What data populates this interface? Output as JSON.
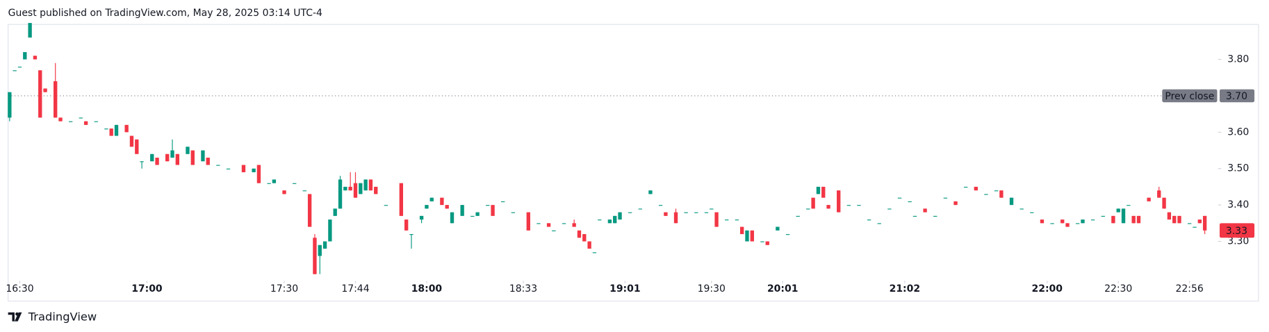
{
  "header": "Guest published on TradingView.com, May 28, 2025 03:14 UTC-4",
  "footer": "TradingView",
  "chart_data": {
    "type": "candlestick",
    "up_color": "#089981",
    "down_color": "#f23645",
    "xlim": [
      -0.3,
      237.6
    ],
    "ylim": [
      3.196,
      3.896
    ],
    "yticks": [
      {
        "value": 3.3,
        "label": "3.30"
      },
      {
        "value": 3.4,
        "label": "3.40"
      },
      {
        "value": 3.5,
        "label": "3.50"
      },
      {
        "value": 3.6,
        "label": "3.60"
      },
      {
        "value": 3.8,
        "label": "3.80"
      }
    ],
    "xticks": [
      {
        "value": 2,
        "label": "16:30"
      },
      {
        "value": 27,
        "label": "17:00",
        "bold": true
      },
      {
        "value": 54,
        "label": "17:30"
      },
      {
        "value": 68,
        "label": "17:44"
      },
      {
        "value": 82,
        "label": "18:00",
        "bold": true
      },
      {
        "value": 101,
        "label": "18:33"
      },
      {
        "value": 121,
        "label": "19:01",
        "bold": true
      },
      {
        "value": 138,
        "label": "19:30"
      },
      {
        "value": 152,
        "label": "20:01",
        "bold": true
      },
      {
        "value": 176,
        "label": "21:02",
        "bold": true
      },
      {
        "value": 204,
        "label": "22:00",
        "bold": true
      },
      {
        "value": 218,
        "label": "22:30"
      },
      {
        "value": 232,
        "label": "22:56"
      }
    ],
    "prev_close": {
      "name": "Prev close",
      "value": 3.7,
      "label": "3.70",
      "color": "#787b86"
    },
    "last_price": 3.33,
    "x": [
      0,
      1,
      2,
      3,
      4,
      5,
      6,
      7,
      9,
      10,
      12,
      14,
      15,
      17,
      19,
      20,
      21,
      23,
      24,
      25,
      26,
      28,
      29,
      31,
      32,
      33,
      35,
      36,
      38,
      39,
      41,
      43,
      46,
      48,
      49,
      51,
      52,
      54,
      56,
      58,
      59,
      60,
      61,
      62,
      63,
      64,
      65,
      66,
      67,
      68,
      69,
      70,
      71,
      72,
      74,
      77,
      78,
      79,
      81,
      82,
      83,
      85,
      86,
      87,
      89,
      91,
      92,
      94,
      95,
      97,
      99,
      102,
      104,
      106,
      107,
      109,
      111,
      112,
      113,
      114,
      115,
      116,
      118,
      119,
      120,
      122,
      124,
      126,
      128,
      129,
      131,
      133,
      135,
      137,
      138,
      139,
      141,
      143,
      144,
      145,
      146,
      148,
      149,
      151,
      153,
      155,
      157,
      158,
      159,
      160,
      161,
      163,
      165,
      167,
      169,
      171,
      173,
      175,
      177,
      178,
      180,
      182,
      184,
      186,
      188,
      190,
      192,
      194,
      195,
      197,
      199,
      201,
      203,
      205,
      207,
      208,
      210,
      211,
      213,
      215,
      217,
      218,
      219,
      220,
      221,
      222,
      224,
      226,
      227,
      228,
      229,
      230,
      232,
      233,
      234,
      235
    ],
    "open": [
      3.64,
      3.77,
      3.78,
      3.8,
      3.86,
      3.81,
      3.77,
      3.72,
      3.74,
      3.64,
      3.63,
      3.64,
      3.63,
      3.63,
      3.61,
      3.61,
      3.59,
      3.62,
      3.59,
      3.58,
      3.52,
      3.52,
      3.53,
      3.54,
      3.53,
      3.54,
      3.54,
      3.55,
      3.52,
      3.53,
      3.51,
      3.5,
      3.51,
      3.49,
      3.51,
      3.46,
      3.46,
      3.44,
      3.46,
      3.44,
      3.43,
      3.31,
      3.26,
      3.28,
      3.3,
      3.37,
      3.39,
      3.44,
      3.45,
      3.46,
      3.43,
      3.44,
      3.47,
      3.45,
      3.4,
      3.46,
      3.36,
      3.32,
      3.36,
      3.39,
      3.41,
      3.42,
      3.4,
      3.35,
      3.37,
      3.37,
      3.37,
      3.4,
      3.4,
      3.41,
      3.38,
      3.38,
      3.35,
      3.35,
      3.33,
      3.35,
      3.35,
      3.33,
      3.32,
      3.3,
      3.27,
      3.36,
      3.35,
      3.35,
      3.36,
      3.38,
      3.39,
      3.43,
      3.4,
      3.38,
      3.38,
      3.38,
      3.38,
      3.38,
      3.39,
      3.38,
      3.36,
      3.36,
      3.34,
      3.3,
      3.33,
      3.3,
      3.3,
      3.33,
      3.32,
      3.37,
      3.39,
      3.42,
      3.43,
      3.45,
      3.4,
      3.44,
      3.4,
      3.4,
      3.36,
      3.35,
      3.39,
      3.42,
      3.41,
      3.37,
      3.39,
      3.37,
      3.42,
      3.41,
      3.45,
      3.45,
      3.43,
      3.44,
      3.44,
      3.4,
      3.39,
      3.38,
      3.36,
      3.35,
      3.36,
      3.35,
      3.35,
      3.35,
      3.36,
      3.37,
      3.37,
      3.38,
      3.35,
      3.4,
      3.37,
      3.37,
      3.42,
      3.44,
      3.42,
      3.38,
      3.37,
      3.37,
      3.35,
      3.34,
      3.36,
      3.37
    ],
    "high": [
      3.71,
      3.77,
      3.78,
      3.82,
      3.9,
      3.81,
      3.77,
      3.72,
      3.79,
      3.64,
      3.63,
      3.64,
      3.63,
      3.63,
      3.61,
      3.61,
      3.62,
      3.62,
      3.59,
      3.58,
      3.52,
      3.54,
      3.53,
      3.54,
      3.58,
      3.54,
      3.56,
      3.55,
      3.55,
      3.53,
      3.51,
      3.5,
      3.51,
      3.5,
      3.51,
      3.46,
      3.47,
      3.44,
      3.46,
      3.44,
      3.43,
      3.32,
      3.29,
      3.3,
      3.36,
      3.39,
      3.48,
      3.45,
      3.49,
      3.49,
      3.46,
      3.47,
      3.47,
      3.45,
      3.4,
      3.46,
      3.36,
      3.32,
      3.37,
      3.4,
      3.42,
      3.42,
      3.4,
      3.38,
      3.4,
      3.37,
      3.38,
      3.4,
      3.4,
      3.41,
      3.38,
      3.38,
      3.35,
      3.35,
      3.33,
      3.35,
      3.36,
      3.33,
      3.32,
      3.3,
      3.27,
      3.36,
      3.36,
      3.37,
      3.38,
      3.38,
      3.39,
      3.44,
      3.4,
      3.38,
      3.39,
      3.38,
      3.38,
      3.38,
      3.39,
      3.38,
      3.36,
      3.36,
      3.34,
      3.33,
      3.33,
      3.3,
      3.3,
      3.34,
      3.32,
      3.37,
      3.39,
      3.42,
      3.45,
      3.45,
      3.4,
      3.44,
      3.4,
      3.4,
      3.36,
      3.35,
      3.39,
      3.42,
      3.41,
      3.37,
      3.39,
      3.37,
      3.42,
      3.41,
      3.45,
      3.45,
      3.43,
      3.44,
      3.44,
      3.42,
      3.39,
      3.38,
      3.36,
      3.35,
      3.36,
      3.35,
      3.35,
      3.36,
      3.36,
      3.37,
      3.37,
      3.39,
      3.39,
      3.4,
      3.37,
      3.37,
      3.42,
      3.45,
      3.42,
      3.38,
      3.37,
      3.37,
      3.35,
      3.34,
      3.36,
      3.37
    ],
    "low": [
      3.63,
      3.77,
      3.78,
      3.8,
      3.86,
      3.8,
      3.64,
      3.71,
      3.64,
      3.63,
      3.63,
      3.64,
      3.62,
      3.63,
      3.61,
      3.59,
      3.59,
      3.6,
      3.56,
      3.54,
      3.5,
      3.52,
      3.51,
      3.52,
      3.53,
      3.51,
      3.54,
      3.51,
      3.52,
      3.51,
      3.51,
      3.5,
      3.49,
      3.49,
      3.46,
      3.46,
      3.46,
      3.43,
      3.46,
      3.44,
      3.34,
      3.21,
      3.21,
      3.28,
      3.3,
      3.37,
      3.39,
      3.44,
      3.44,
      3.42,
      3.43,
      3.44,
      3.44,
      3.43,
      3.4,
      3.37,
      3.33,
      3.28,
      3.35,
      3.39,
      3.41,
      3.4,
      3.39,
      3.35,
      3.37,
      3.37,
      3.37,
      3.4,
      3.37,
      3.41,
      3.38,
      3.33,
      3.35,
      3.34,
      3.33,
      3.35,
      3.34,
      3.31,
      3.3,
      3.28,
      3.27,
      3.36,
      3.35,
      3.35,
      3.36,
      3.38,
      3.39,
      3.43,
      3.4,
      3.37,
      3.35,
      3.38,
      3.38,
      3.38,
      3.39,
      3.34,
      3.36,
      3.36,
      3.32,
      3.3,
      3.3,
      3.3,
      3.29,
      3.33,
      3.32,
      3.37,
      3.39,
      3.39,
      3.43,
      3.42,
      3.39,
      3.38,
      3.4,
      3.4,
      3.36,
      3.35,
      3.39,
      3.42,
      3.41,
      3.37,
      3.38,
      3.37,
      3.42,
      3.4,
      3.45,
      3.44,
      3.43,
      3.44,
      3.42,
      3.4,
      3.39,
      3.38,
      3.35,
      3.35,
      3.35,
      3.34,
      3.35,
      3.35,
      3.36,
      3.37,
      3.35,
      3.38,
      3.35,
      3.4,
      3.35,
      3.35,
      3.41,
      3.42,
      3.39,
      3.36,
      3.35,
      3.35,
      3.35,
      3.34,
      3.35,
      3.32
    ],
    "close": [
      3.71,
      3.77,
      3.78,
      3.82,
      3.9,
      3.8,
      3.64,
      3.71,
      3.64,
      3.63,
      3.63,
      3.64,
      3.62,
      3.63,
      3.61,
      3.59,
      3.62,
      3.6,
      3.56,
      3.54,
      3.52,
      3.54,
      3.51,
      3.52,
      3.55,
      3.51,
      3.56,
      3.51,
      3.55,
      3.51,
      3.51,
      3.5,
      3.49,
      3.5,
      3.46,
      3.46,
      3.47,
      3.43,
      3.46,
      3.44,
      3.34,
      3.21,
      3.29,
      3.3,
      3.36,
      3.39,
      3.47,
      3.45,
      3.44,
      3.42,
      3.46,
      3.47,
      3.44,
      3.43,
      3.4,
      3.37,
      3.33,
      3.32,
      3.37,
      3.4,
      3.42,
      3.4,
      3.39,
      3.38,
      3.4,
      3.37,
      3.38,
      3.4,
      3.37,
      3.41,
      3.38,
      3.33,
      3.35,
      3.34,
      3.33,
      3.35,
      3.34,
      3.31,
      3.3,
      3.28,
      3.27,
      3.36,
      3.36,
      3.37,
      3.38,
      3.38,
      3.39,
      3.44,
      3.4,
      3.37,
      3.35,
      3.38,
      3.38,
      3.38,
      3.39,
      3.34,
      3.36,
      3.36,
      3.32,
      3.33,
      3.3,
      3.3,
      3.29,
      3.34,
      3.32,
      3.37,
      3.39,
      3.39,
      3.45,
      3.42,
      3.39,
      3.38,
      3.4,
      3.4,
      3.36,
      3.35,
      3.39,
      3.42,
      3.41,
      3.37,
      3.38,
      3.37,
      3.42,
      3.4,
      3.45,
      3.44,
      3.43,
      3.44,
      3.42,
      3.42,
      3.39,
      3.38,
      3.35,
      3.35,
      3.35,
      3.34,
      3.35,
      3.36,
      3.36,
      3.37,
      3.35,
      3.39,
      3.39,
      3.4,
      3.35,
      3.35,
      3.41,
      3.42,
      3.39,
      3.36,
      3.35,
      3.35,
      3.35,
      3.34,
      3.35,
      3.33
    ]
  }
}
